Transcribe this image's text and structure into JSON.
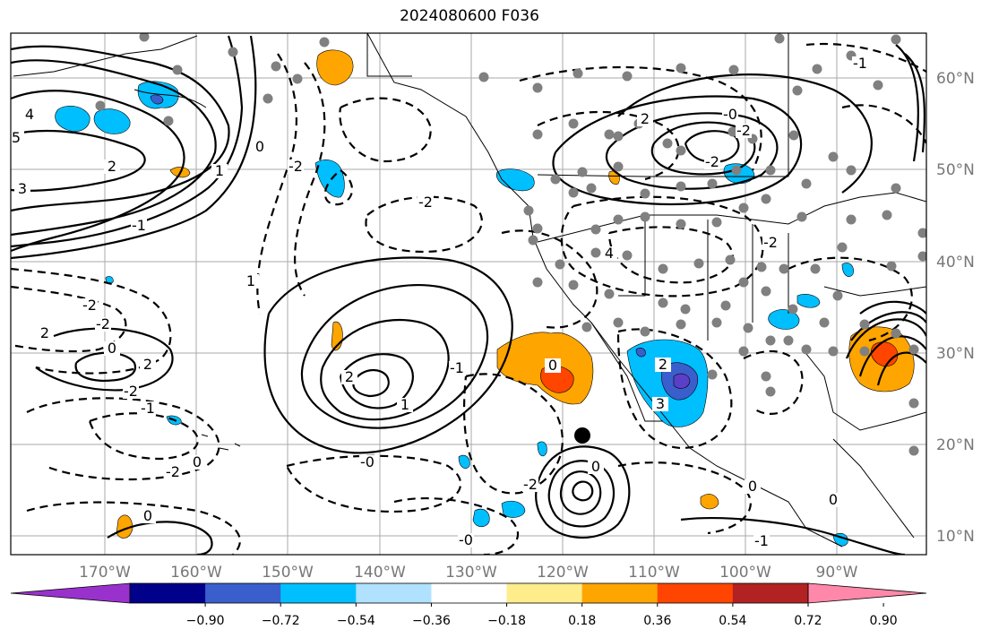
{
  "title": "2024080600 F036",
  "map": {
    "lon_labels": [
      "170°W",
      "160°W",
      "150°W",
      "140°W",
      "130°W",
      "120°W",
      "110°W",
      "100°W",
      "90°W"
    ],
    "lat_labels": [
      "60°N",
      "50°N",
      "40°N",
      "30°N",
      "20°N",
      "10°N"
    ],
    "contour_labels": [
      "4",
      "5",
      "3",
      "2",
      "1",
      "-2",
      "-1",
      "0",
      "1",
      "-2",
      "2",
      "-2",
      "0",
      "2",
      "-2",
      "-1",
      "0",
      "-2",
      "-0",
      "0",
      "2",
      "-2",
      "1",
      "-1",
      "0",
      "2",
      "3",
      "4",
      "-2",
      "0",
      "-2",
      "-2",
      "-0",
      "2",
      "-2",
      "-1",
      "0",
      "-1",
      "0",
      "-0"
    ],
    "fill_colors": {
      "positive_low": "#ffa500",
      "positive_mid": "#ff4500",
      "negative_low": "#00bfff",
      "negative_mid": "#3a5fcd",
      "negative_high": "#5b3fc8"
    },
    "grid": true
  },
  "colorbar": {
    "colors": [
      "#9932cc",
      "#00008b",
      "#3a5fcd",
      "#00bfff",
      "#b0e2ff",
      "#ffffff",
      "#ffec8b",
      "#ffa500",
      "#ff4500",
      "#b22222",
      "#ff88aa"
    ],
    "tick_labels": [
      "−0.90",
      "−0.72",
      "−0.54",
      "−0.36",
      "−0.18",
      "0.18",
      "0.36",
      "0.54",
      "0.72",
      "0.90"
    ]
  }
}
